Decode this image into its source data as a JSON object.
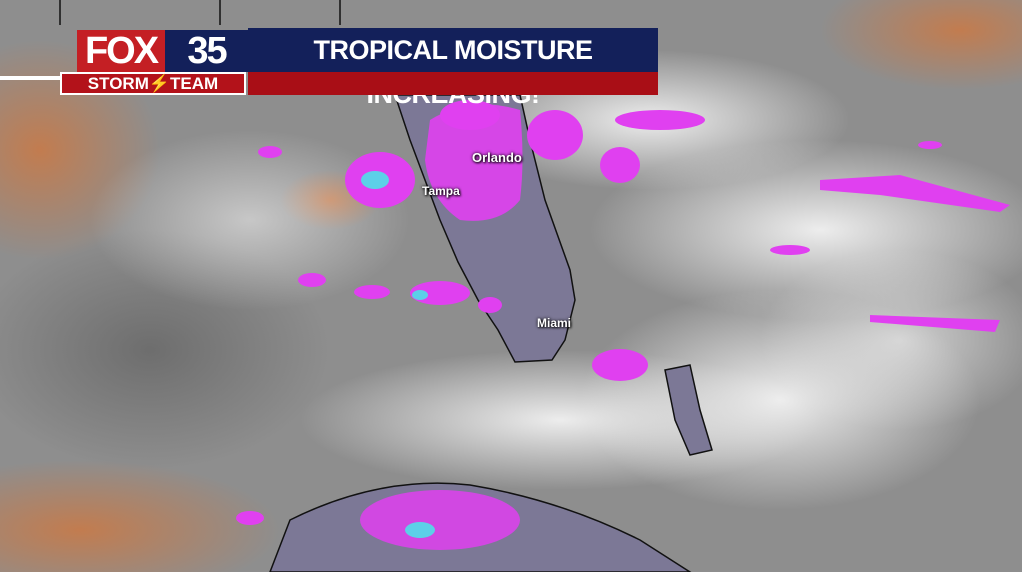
{
  "graphic": {
    "brand_fox": "FOX",
    "brand_number": "35",
    "brand_team": "STORM⚡TEAM",
    "headline": "TROPICAL MOISTURE INCREASING!"
  },
  "cities": [
    {
      "name": "Orlando"
    },
    {
      "name": "Tampa"
    },
    {
      "name": "Miami"
    }
  ],
  "colors": {
    "fox_red": "#c41f24",
    "navy": "#13205a",
    "bar_red": "#a90e16",
    "moisture_magenta": "#e040f0",
    "high_moisture_cyan": "#5cd0e8",
    "land_lavender": "#7c7896",
    "dry_orange": "#c87a48"
  }
}
